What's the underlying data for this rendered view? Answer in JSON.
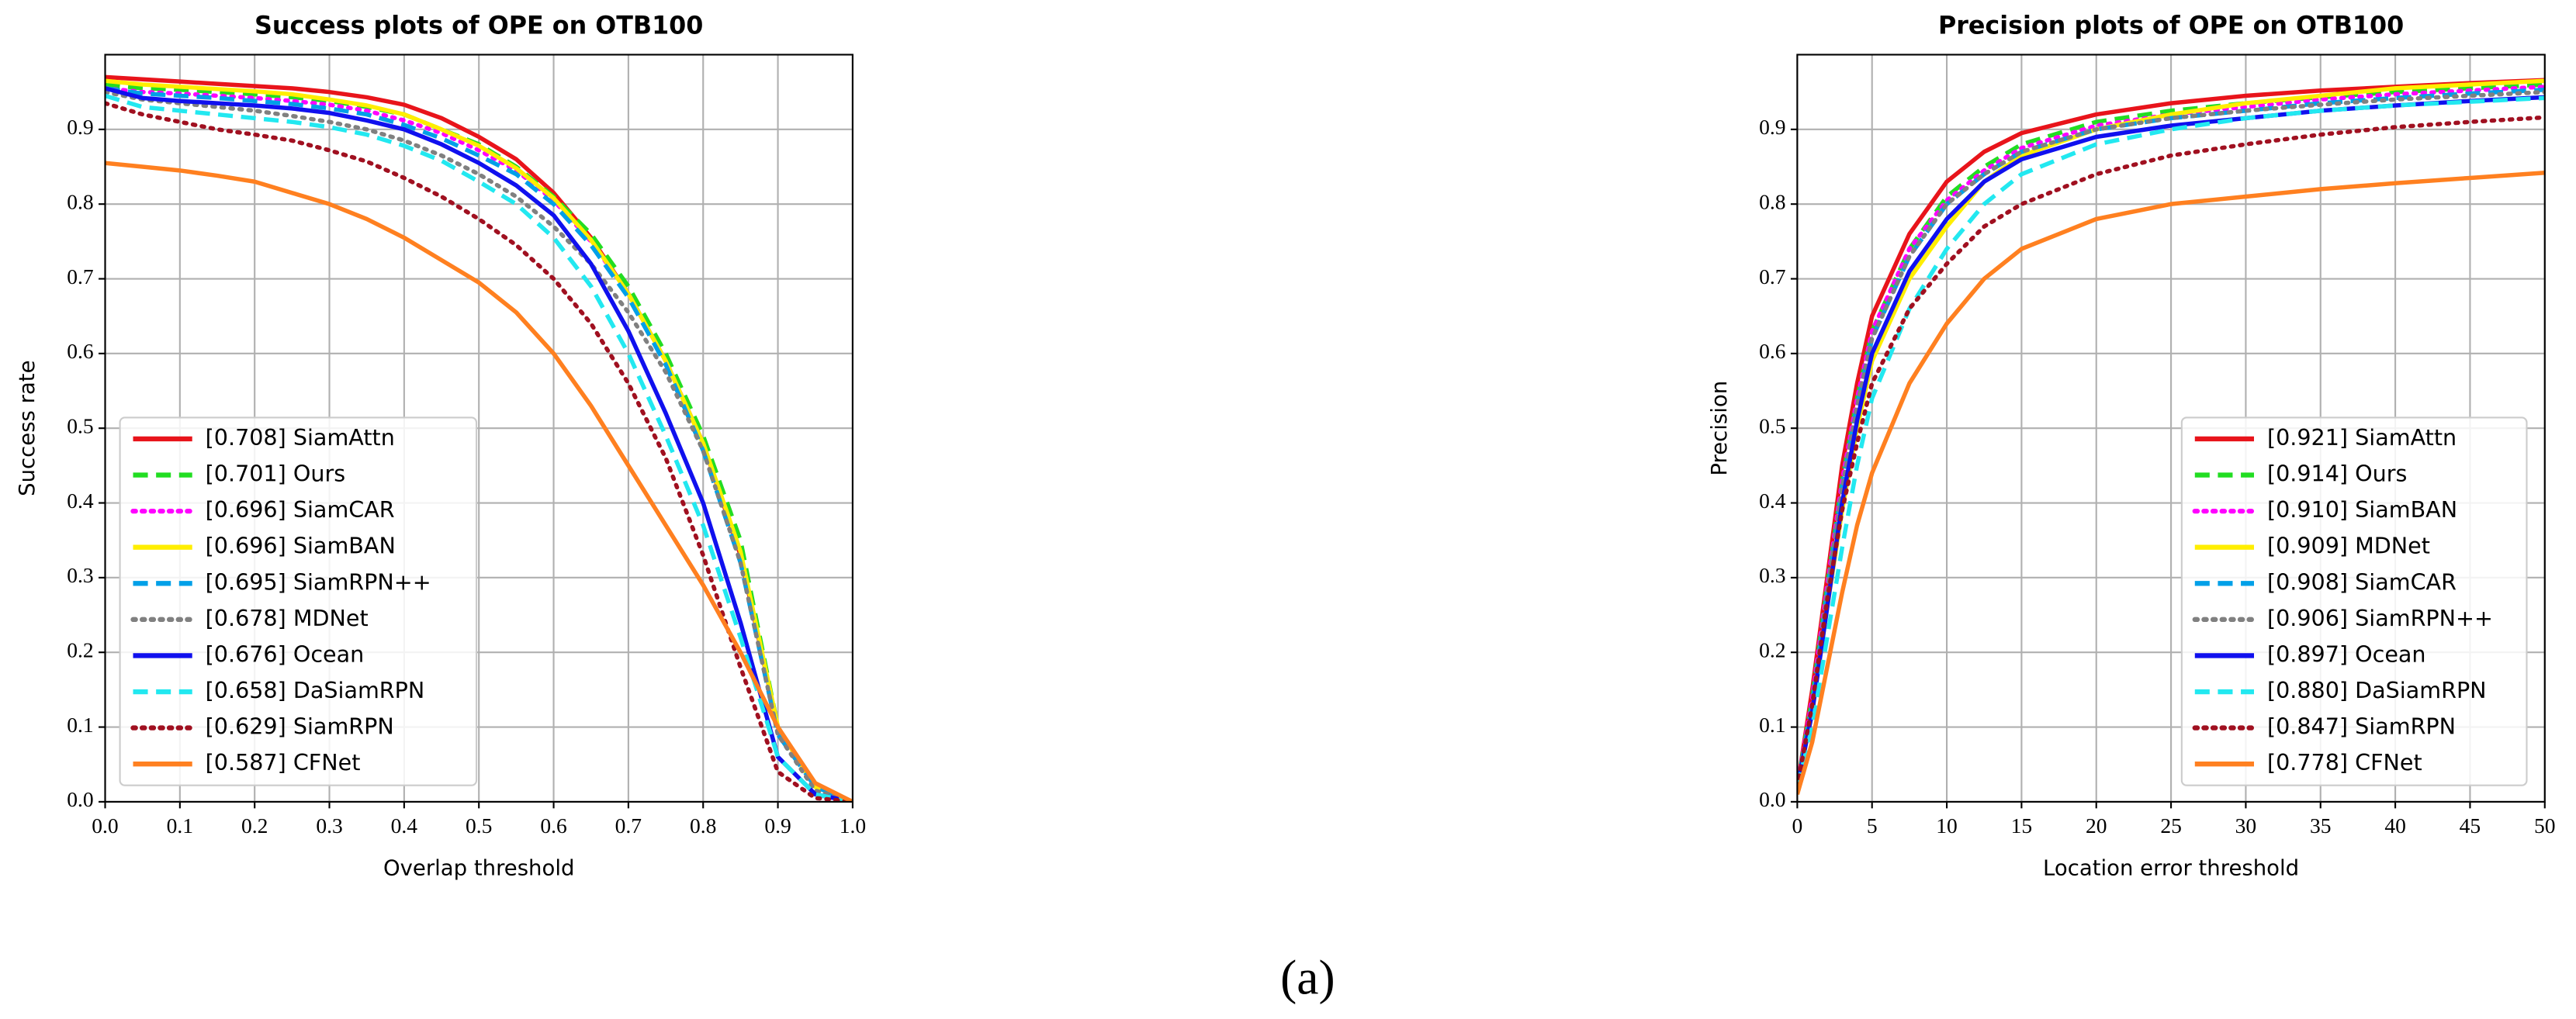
{
  "chart_data": [
    {
      "type": "line",
      "title": "Success plots of OPE on OTB100",
      "xlabel": "Overlap threshold",
      "ylabel": "Success rate",
      "x": [
        0,
        0.05,
        0.1,
        0.15,
        0.2,
        0.25,
        0.3,
        0.35,
        0.4,
        0.45,
        0.5,
        0.55,
        0.6,
        0.65,
        0.7,
        0.75,
        0.8,
        0.85,
        0.9,
        0.95,
        1
      ],
      "xlim": [
        0,
        1
      ],
      "ylim": [
        0,
        1
      ],
      "xticks": [
        {
          "value": 0,
          "label": "0.0"
        },
        0.1,
        0.2,
        0.3,
        0.4,
        0.5,
        0.6,
        0.7,
        0.8,
        0.9,
        {
          "value": 1,
          "label": "1.0"
        }
      ],
      "yticks": [
        {
          "value": 0,
          "label": "0.0"
        },
        0.1,
        0.2,
        0.3,
        0.4,
        0.5,
        0.6,
        0.7,
        0.8,
        0.9
      ],
      "grid": true,
      "legend": "lower left",
      "series": [
        {
          "name": "[0.708] SiamAttn",
          "color": "#e8141b",
          "style": "solid",
          "values": [
            0.97,
            0.967,
            0.964,
            0.961,
            0.958,
            0.955,
            0.95,
            0.943,
            0.933,
            0.915,
            0.89,
            0.86,
            0.815,
            0.755,
            0.68,
            0.59,
            0.48,
            0.33,
            0.1,
            0.02,
            0
          ]
        },
        {
          "name": "[0.701] Ours",
          "color": "#22dd22",
          "style": "dashed",
          "values": [
            0.96,
            0.955,
            0.953,
            0.95,
            0.947,
            0.943,
            0.938,
            0.93,
            0.92,
            0.9,
            0.88,
            0.85,
            0.81,
            0.76,
            0.69,
            0.6,
            0.49,
            0.35,
            0.1,
            0.02,
            0
          ]
        },
        {
          "name": "[0.696] SiamCAR",
          "color": "#ff00ff",
          "style": "dotted",
          "values": [
            0.955,
            0.95,
            0.948,
            0.945,
            0.942,
            0.938,
            0.933,
            0.925,
            0.912,
            0.895,
            0.872,
            0.845,
            0.805,
            0.75,
            0.68,
            0.59,
            0.48,
            0.33,
            0.09,
            0.02,
            0
          ]
        },
        {
          "name": "[0.696] SiamBAN",
          "color": "#ffee00",
          "style": "solid",
          "values": [
            0.965,
            0.96,
            0.957,
            0.954,
            0.951,
            0.947,
            0.94,
            0.932,
            0.92,
            0.9,
            0.878,
            0.848,
            0.808,
            0.752,
            0.68,
            0.59,
            0.48,
            0.335,
            0.1,
            0.02,
            0
          ]
        },
        {
          "name": "[0.695] SiamRPN++",
          "color": "#00a0e8",
          "style": "dashed",
          "values": [
            0.955,
            0.948,
            0.945,
            0.942,
            0.938,
            0.934,
            0.928,
            0.92,
            0.906,
            0.888,
            0.865,
            0.84,
            0.8,
            0.745,
            0.675,
            0.585,
            0.47,
            0.32,
            0.09,
            0.02,
            0
          ]
        },
        {
          "name": "[0.678] MDNet",
          "color": "#808080",
          "style": "dotted",
          "values": [
            0.95,
            0.94,
            0.935,
            0.93,
            0.925,
            0.918,
            0.91,
            0.9,
            0.885,
            0.865,
            0.84,
            0.81,
            0.77,
            0.72,
            0.655,
            0.575,
            0.47,
            0.32,
            0.09,
            0.015,
            0
          ]
        },
        {
          "name": "[0.676] Ocean",
          "color": "#1010ee",
          "style": "solid",
          "values": [
            0.955,
            0.942,
            0.938,
            0.935,
            0.932,
            0.928,
            0.922,
            0.912,
            0.9,
            0.88,
            0.855,
            0.825,
            0.785,
            0.72,
            0.63,
            0.52,
            0.4,
            0.24,
            0.06,
            0.01,
            0
          ]
        },
        {
          "name": "[0.658] DaSiamRPN",
          "color": "#22e8f0",
          "style": "dashed",
          "values": [
            0.945,
            0.93,
            0.925,
            0.92,
            0.915,
            0.91,
            0.903,
            0.893,
            0.878,
            0.858,
            0.83,
            0.8,
            0.755,
            0.69,
            0.6,
            0.49,
            0.37,
            0.22,
            0.06,
            0.01,
            0
          ]
        },
        {
          "name": "[0.629] SiamRPN",
          "color": "#a01020",
          "style": "dotted",
          "values": [
            0.935,
            0.92,
            0.91,
            0.9,
            0.893,
            0.885,
            0.872,
            0.857,
            0.835,
            0.81,
            0.78,
            0.745,
            0.7,
            0.64,
            0.56,
            0.46,
            0.33,
            0.18,
            0.04,
            0.005,
            0
          ]
        },
        {
          "name": "[0.587] CFNet",
          "color": "#ff8020",
          "style": "solid",
          "values": [
            0.855,
            0.85,
            0.845,
            0.838,
            0.83,
            0.815,
            0.8,
            0.78,
            0.755,
            0.725,
            0.695,
            0.655,
            0.6,
            0.53,
            0.45,
            0.37,
            0.29,
            0.2,
            0.1,
            0.025,
            0
          ]
        }
      ]
    },
    {
      "type": "line",
      "title": "Precision plots of OPE on OTB100",
      "xlabel": "Location error threshold",
      "ylabel": "Precision",
      "x": [
        0,
        1,
        2,
        3,
        4,
        5,
        7.5,
        10,
        12.5,
        15,
        20,
        25,
        30,
        35,
        40,
        45,
        50
      ],
      "xlim": [
        0,
        50
      ],
      "ylim": [
        0,
        1
      ],
      "xticks": [
        0,
        5,
        10,
        15,
        20,
        25,
        30,
        35,
        40,
        45,
        50
      ],
      "yticks": [
        {
          "value": 0,
          "label": "0.0"
        },
        0.1,
        0.2,
        0.3,
        0.4,
        0.5,
        0.6,
        0.7,
        0.8,
        0.9
      ],
      "grid": true,
      "legend": "lower right",
      "series": [
        {
          "name": "[0.921] SiamAttn",
          "color": "#e8141b",
          "style": "solid",
          "values": [
            0.02,
            0.15,
            0.3,
            0.45,
            0.56,
            0.65,
            0.76,
            0.83,
            0.87,
            0.895,
            0.92,
            0.935,
            0.945,
            0.952,
            0.957,
            0.962,
            0.966
          ]
        },
        {
          "name": "[0.914] Ours",
          "color": "#22dd22",
          "style": "dashed",
          "values": [
            0.02,
            0.14,
            0.29,
            0.43,
            0.54,
            0.63,
            0.74,
            0.81,
            0.85,
            0.88,
            0.91,
            0.925,
            0.935,
            0.943,
            0.95,
            0.955,
            0.96
          ]
        },
        {
          "name": "[0.910] SiamBAN",
          "color": "#ff00ff",
          "style": "dotted",
          "values": [
            0.02,
            0.14,
            0.29,
            0.43,
            0.54,
            0.63,
            0.74,
            0.805,
            0.845,
            0.875,
            0.905,
            0.92,
            0.93,
            0.94,
            0.947,
            0.952,
            0.957
          ]
        },
        {
          "name": "[0.909] MDNet",
          "color": "#ffee00",
          "style": "solid",
          "values": [
            0.02,
            0.12,
            0.26,
            0.39,
            0.5,
            0.59,
            0.7,
            0.77,
            0.83,
            0.865,
            0.9,
            0.92,
            0.935,
            0.945,
            0.955,
            0.96,
            0.965
          ]
        },
        {
          "name": "[0.908] SiamCAR",
          "color": "#00a0e8",
          "style": "dashed",
          "values": [
            0.02,
            0.13,
            0.28,
            0.42,
            0.53,
            0.62,
            0.73,
            0.8,
            0.84,
            0.87,
            0.9,
            0.915,
            0.925,
            0.935,
            0.942,
            0.948,
            0.953
          ]
        },
        {
          "name": "[0.906] SiamRPN++",
          "color": "#808080",
          "style": "dotted",
          "values": [
            0.02,
            0.13,
            0.28,
            0.42,
            0.53,
            0.62,
            0.73,
            0.8,
            0.84,
            0.87,
            0.9,
            0.915,
            0.925,
            0.933,
            0.94,
            0.945,
            0.95
          ]
        },
        {
          "name": "[0.897] Ocean",
          "color": "#1010ee",
          "style": "solid",
          "values": [
            0.02,
            0.12,
            0.26,
            0.4,
            0.51,
            0.6,
            0.71,
            0.78,
            0.83,
            0.86,
            0.89,
            0.905,
            0.915,
            0.925,
            0.932,
            0.938,
            0.943
          ]
        },
        {
          "name": "[0.880] DaSiamRPN",
          "color": "#22e8f0",
          "style": "dashed",
          "values": [
            0.02,
            0.1,
            0.22,
            0.34,
            0.45,
            0.54,
            0.66,
            0.74,
            0.8,
            0.84,
            0.88,
            0.9,
            0.915,
            0.925,
            0.932,
            0.937,
            0.942
          ]
        },
        {
          "name": "[0.847] SiamRPN",
          "color": "#a01020",
          "style": "dotted",
          "values": [
            0.02,
            0.13,
            0.27,
            0.39,
            0.48,
            0.56,
            0.66,
            0.72,
            0.77,
            0.8,
            0.84,
            0.865,
            0.88,
            0.893,
            0.903,
            0.91,
            0.916
          ]
        },
        {
          "name": "[0.778] CFNet",
          "color": "#ff8020",
          "style": "solid",
          "values": [
            0.01,
            0.08,
            0.18,
            0.28,
            0.37,
            0.44,
            0.56,
            0.64,
            0.7,
            0.74,
            0.78,
            0.8,
            0.81,
            0.82,
            0.828,
            0.835,
            0.842
          ]
        }
      ]
    }
  ],
  "caption": "(a)"
}
